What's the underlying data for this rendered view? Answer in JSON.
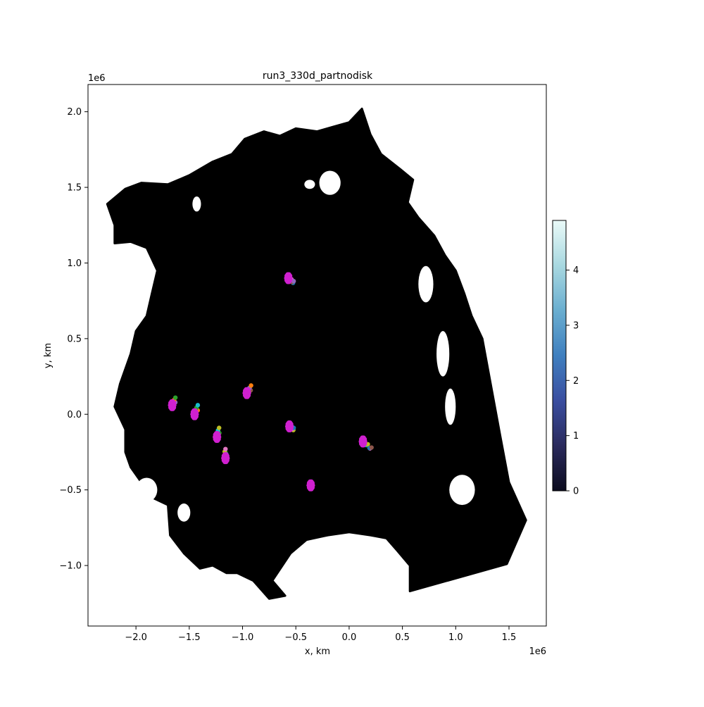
{
  "chart_data": {
    "type": "scatter",
    "title": "run3_330d_partnodisk",
    "xlabel": "x, km",
    "ylabel": "y, km",
    "x_offset_label": "1e6",
    "y_offset_label": "1e6",
    "xlim": [
      -2.45,
      1.85
    ],
    "ylim": [
      -1.4,
      2.18
    ],
    "x_ticks": [
      -2.0,
      -1.5,
      -1.0,
      -0.5,
      0.0,
      0.5,
      1.0,
      1.5
    ],
    "x_tick_labels": [
      "−2.0",
      "−1.5",
      "−1.0",
      "−0.5",
      "0.0",
      "0.5",
      "1.0",
      "1.5"
    ],
    "y_ticks": [
      -1.0,
      -0.5,
      0.0,
      0.5,
      1.0,
      1.5,
      2.0
    ],
    "y_tick_labels": [
      "−1.0",
      "−0.5",
      "0.0",
      "0.5",
      "1.0",
      "1.5",
      "2.0"
    ],
    "domain_color": "#000000",
    "domain_outline": [
      [
        -2.27,
        1.39
      ],
      [
        -2.1,
        1.49
      ],
      [
        -1.95,
        1.53
      ],
      [
        -1.7,
        1.52
      ],
      [
        -1.5,
        1.58
      ],
      [
        -1.28,
        1.67
      ],
      [
        -1.1,
        1.72
      ],
      [
        -0.98,
        1.82
      ],
      [
        -0.8,
        1.87
      ],
      [
        -0.65,
        1.84
      ],
      [
        -0.5,
        1.89
      ],
      [
        -0.3,
        1.87
      ],
      [
        -0.15,
        1.9
      ],
      [
        0.0,
        1.93
      ],
      [
        0.12,
        2.02
      ],
      [
        0.2,
        1.85
      ],
      [
        0.3,
        1.72
      ],
      [
        0.48,
        1.62
      ],
      [
        0.6,
        1.55
      ],
      [
        0.55,
        1.4
      ],
      [
        0.65,
        1.3
      ],
      [
        0.8,
        1.18
      ],
      [
        0.9,
        1.05
      ],
      [
        1.0,
        0.95
      ],
      [
        1.08,
        0.8
      ],
      [
        1.15,
        0.65
      ],
      [
        1.25,
        0.5
      ],
      [
        1.42,
        -0.15
      ],
      [
        1.5,
        -0.45
      ],
      [
        1.66,
        -0.7
      ],
      [
        1.48,
        -0.99
      ],
      [
        0.57,
        -1.17
      ],
      [
        0.57,
        -1.0
      ],
      [
        0.45,
        -0.9
      ],
      [
        0.35,
        -0.82
      ],
      [
        0.2,
        -0.8
      ],
      [
        0.0,
        -0.78
      ],
      [
        -0.2,
        -0.8
      ],
      [
        -0.4,
        -0.83
      ],
      [
        -0.55,
        -0.92
      ],
      [
        -0.72,
        -1.1
      ],
      [
        -0.6,
        -1.2
      ],
      [
        -0.75,
        -1.22
      ],
      [
        -0.9,
        -1.1
      ],
      [
        -1.05,
        -1.05
      ],
      [
        -1.15,
        -1.05
      ],
      [
        -1.28,
        -1.0
      ],
      [
        -1.4,
        -1.02
      ],
      [
        -1.55,
        -0.92
      ],
      [
        -1.68,
        -0.8
      ],
      [
        -1.7,
        -0.6
      ],
      [
        -1.85,
        -0.55
      ],
      [
        -1.95,
        -0.45
      ],
      [
        -2.05,
        -0.35
      ],
      [
        -2.1,
        -0.25
      ],
      [
        -2.1,
        -0.1
      ],
      [
        -2.2,
        0.05
      ],
      [
        -2.15,
        0.2
      ],
      [
        -2.05,
        0.4
      ],
      [
        -2.0,
        0.55
      ],
      [
        -1.9,
        0.65
      ],
      [
        -1.85,
        0.8
      ],
      [
        -1.8,
        0.95
      ],
      [
        -1.9,
        1.1
      ],
      [
        -2.05,
        1.14
      ],
      [
        -2.2,
        1.13
      ],
      [
        -2.2,
        1.25
      ]
    ],
    "holes": [
      {
        "cx": -1.43,
        "cy": 1.39,
        "rx": 0.04,
        "ry": 0.05
      },
      {
        "cx": -0.37,
        "cy": 1.52,
        "rx": 0.05,
        "ry": 0.03
      },
      {
        "cx": -0.18,
        "cy": 1.53,
        "rx": 0.1,
        "ry": 0.08
      },
      {
        "cx": 0.72,
        "cy": 0.86,
        "rx": 0.07,
        "ry": 0.12
      },
      {
        "cx": 0.88,
        "cy": 0.4,
        "rx": 0.06,
        "ry": 0.15
      },
      {
        "cx": 0.95,
        "cy": 0.05,
        "rx": 0.05,
        "ry": 0.12
      },
      {
        "cx": 1.06,
        "cy": -0.5,
        "rx": 0.12,
        "ry": 0.1
      },
      {
        "cx": -1.9,
        "cy": -0.5,
        "rx": 0.1,
        "ry": 0.08
      },
      {
        "cx": -1.55,
        "cy": -0.65,
        "rx": 0.06,
        "ry": 0.06
      }
    ],
    "clusters": [
      {
        "x": -0.57,
        "y": 0.9,
        "trail_dx": 0.05,
        "trail_dy": -0.03
      },
      {
        "x": -0.96,
        "y": 0.14,
        "trail_dx": 0.04,
        "trail_dy": 0.04
      },
      {
        "x": -1.66,
        "y": 0.06,
        "trail_dx": 0.03,
        "trail_dy": 0.04
      },
      {
        "x": -1.45,
        "y": 0.0,
        "trail_dx": 0.03,
        "trail_dy": 0.05
      },
      {
        "x": -1.24,
        "y": -0.15,
        "trail_dx": 0.02,
        "trail_dy": 0.05
      },
      {
        "x": -1.16,
        "y": -0.29,
        "trail_dx": 0.0,
        "trail_dy": 0.05
      },
      {
        "x": -0.56,
        "y": -0.08,
        "trail_dx": 0.04,
        "trail_dy": -0.02
      },
      {
        "x": 0.13,
        "y": -0.18,
        "trail_dx": 0.08,
        "trail_dy": -0.05
      },
      {
        "x": -0.36,
        "y": -0.47,
        "trail_dx": 0.0,
        "trail_dy": 0.0
      }
    ],
    "cluster_core_color": "#d020d0",
    "trail_colors": [
      "#ff7f0e",
      "#2ca02c",
      "#17becf",
      "#bcbd22",
      "#e377c2",
      "#1f77b4",
      "#8c564b",
      "#9467bd"
    ],
    "colorbar": {
      "min": 0,
      "max": 4.9,
      "ticks": [
        0,
        1,
        2,
        3,
        4
      ],
      "tick_labels": [
        "0",
        "1",
        "2",
        "3",
        "4"
      ],
      "colormap": [
        "#0b0b1e",
        "#2a2a5c",
        "#3a4ea0",
        "#3f7fbf",
        "#6aaed0",
        "#a8d8e0",
        "#eafaf8"
      ]
    }
  }
}
